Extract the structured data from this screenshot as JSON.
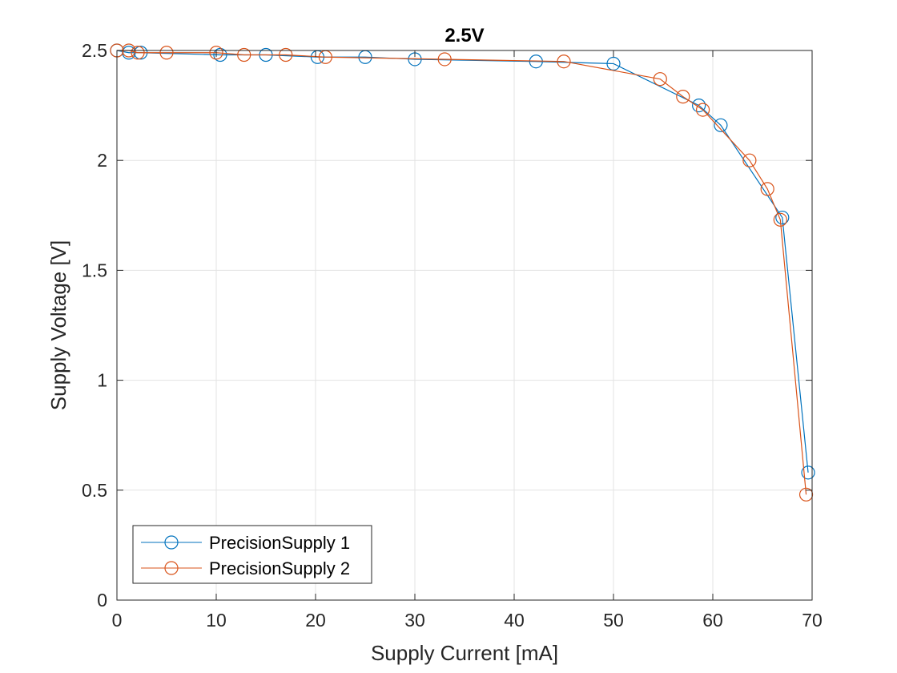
{
  "chart_data": {
    "type": "line",
    "title": "2.5V",
    "xlabel": "Supply Current [mA]",
    "ylabel": "Supply Voltage [V]",
    "xlim": [
      0,
      70
    ],
    "ylim": [
      0,
      2.5
    ],
    "xticks": [
      0,
      10,
      20,
      30,
      40,
      50,
      60,
      70
    ],
    "yticks": [
      0,
      0.5,
      1,
      1.5,
      2,
      2.5
    ],
    "xtick_labels": [
      "0",
      "10",
      "20",
      "30",
      "40",
      "50",
      "60",
      "70"
    ],
    "ytick_labels": [
      "0",
      "0.5",
      "1",
      "1.5",
      "2",
      "2.5"
    ],
    "grid": true,
    "legend_position": "bottom-left",
    "marker": "open-circle",
    "series": [
      {
        "name": "PrecisionSupply 1",
        "color": "#0072BD",
        "x": [
          0.0,
          1.2,
          2.4,
          10.4,
          15.0,
          20.2,
          25.0,
          30.0,
          42.2,
          50.0,
          58.6,
          60.8,
          67.0,
          69.6
        ],
        "y": [
          2.5,
          2.49,
          2.49,
          2.48,
          2.48,
          2.47,
          2.47,
          2.46,
          2.45,
          2.44,
          2.25,
          2.16,
          1.74,
          0.58
        ]
      },
      {
        "name": "PrecisionSupply 2",
        "color": "#D95319",
        "x": [
          0.0,
          1.2,
          2.1,
          5.0,
          10.0,
          12.8,
          17.0,
          21.0,
          33.0,
          45.0,
          54.7,
          57.0,
          59.0,
          63.7,
          65.5,
          66.8,
          69.4
        ],
        "y": [
          2.5,
          2.5,
          2.49,
          2.49,
          2.49,
          2.48,
          2.48,
          2.47,
          2.46,
          2.45,
          2.37,
          2.29,
          2.23,
          2.0,
          1.87,
          1.73,
          0.48
        ]
      }
    ]
  }
}
